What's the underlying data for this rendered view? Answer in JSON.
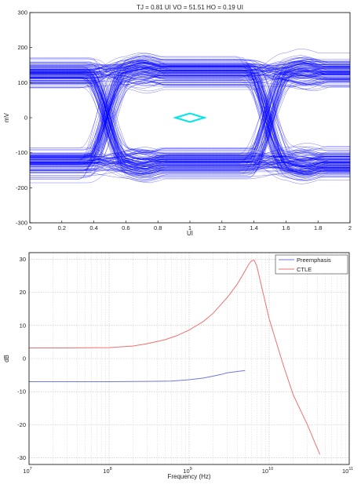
{
  "chart_data": [
    {
      "type": "line",
      "title": "TJ = 0.81 UI VO = 51.51 HO = 0.19 UI",
      "xlabel": "UI",
      "ylabel": "mV",
      "xlim": [
        0,
        2
      ],
      "ylim": [
        -300,
        300
      ],
      "xticks": [
        "0",
        "0.2",
        "0.4",
        "0.6",
        "0.8",
        "1",
        "1.2",
        "1.4",
        "1.6",
        "1.8",
        "2"
      ],
      "yticks": [
        "-300",
        "-200",
        "-100",
        "0",
        "100",
        "200",
        "300"
      ],
      "grid": false,
      "trace_color": "#0000ff",
      "mask_color": "#00e5e5",
      "levels_mV": [
        -130,
        130
      ],
      "crossing_ui": [
        0.48,
        1.49
      ],
      "mask": {
        "x": [
          0.91,
          1.0,
          1.09,
          1.0
        ],
        "y": [
          0,
          12,
          0,
          -12
        ]
      }
    },
    {
      "type": "line",
      "xlabel": "Frequency (Hz)",
      "ylabel": "dB",
      "xscale": "log",
      "xlim": [
        10000000,
        100000000000
      ],
      "ylim": [
        -32,
        32
      ],
      "yticks": [
        "-30",
        "-20",
        "-10",
        "0",
        "10",
        "20",
        "30"
      ],
      "xtick_labels": [
        {
          "base": "10",
          "exp": "7"
        },
        {
          "base": "10",
          "exp": "8"
        },
        {
          "base": "10",
          "exp": "9"
        },
        {
          "base": "10",
          "exp": "10"
        },
        {
          "base": "10",
          "exp": "11"
        }
      ],
      "grid": true,
      "legend_position": "top-right",
      "series": [
        {
          "name": "Preemphasis",
          "color": "#6f78e0",
          "x": [
            10000000,
            30000000,
            100000000,
            300000000,
            600000000,
            1000000000,
            1500000000,
            2000000000,
            2500000000,
            3000000000,
            4000000000,
            5000000000
          ],
          "y": [
            -7,
            -7,
            -7,
            -6.9,
            -6.8,
            -6.4,
            -5.9,
            -5.3,
            -4.8,
            -4.3,
            -3.9,
            -3.6
          ]
        },
        {
          "name": "CTLE",
          "color": "#f07070",
          "x": [
            10000000,
            30000000,
            100000000,
            200000000,
            300000000,
            500000000,
            700000000,
            1000000000,
            1500000000,
            2000000000,
            3000000000,
            4000000000,
            5000000000,
            5500000000,
            6000000000,
            6500000000,
            7000000000,
            8000000000,
            10000000000,
            15000000000,
            20000000000,
            30000000000,
            43000000000
          ],
          "y": [
            3.2,
            3.2,
            3.3,
            3.8,
            4.5,
            5.7,
            6.9,
            8.6,
            11.2,
            13.7,
            18.5,
            22.5,
            26.5,
            28.3,
            29.5,
            29.7,
            28.0,
            22.0,
            12.0,
            -2.0,
            -11.0,
            -20.0,
            -29.0
          ]
        }
      ]
    }
  ]
}
